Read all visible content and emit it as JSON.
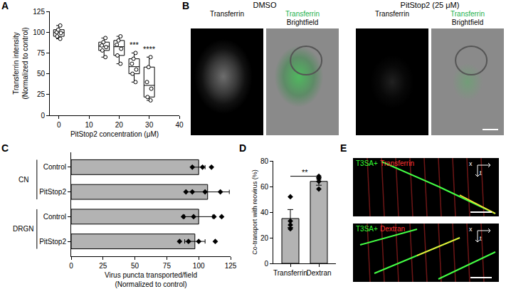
{
  "panel_labels": [
    "A",
    "B",
    "C",
    "D",
    "E"
  ],
  "chart_data": [
    {
      "panel": "A",
      "type": "box",
      "x_label": "PitStop2 concentration (μM)",
      "y_label": "Transferrin intensity\n(Normalized to control)",
      "x": [
        0,
        15,
        20,
        25,
        30
      ],
      "points": [
        [
          100,
          108,
          95,
          92,
          103,
          99
        ],
        [
          93,
          88,
          84,
          78,
          70,
          82
        ],
        [
          95,
          90,
          85,
          80,
          72,
          62
        ],
        [
          75,
          68,
          62,
          55,
          50,
          40
        ],
        [
          70,
          58,
          40,
          32,
          22,
          18
        ]
      ],
      "significance": [
        {
          "x": 25,
          "label": "***"
        },
        {
          "x": 30,
          "label": "****"
        }
      ],
      "xlim": [
        -3,
        40
      ],
      "xticks": [
        0,
        10,
        20,
        30,
        40
      ],
      "ylim": [
        0,
        125
      ],
      "yticks": [
        0,
        25,
        50,
        75,
        100,
        125
      ],
      "grid": false
    },
    {
      "panel": "C",
      "type": "bar",
      "orientation": "horizontal",
      "categories": [
        "Control",
        "PitStop2",
        "Control",
        "PitStop2"
      ],
      "groups": [
        "CN",
        "CN",
        "DRGN",
        "DRGN"
      ],
      "values": [
        100,
        107,
        100,
        97
      ],
      "errors": [
        5,
        17,
        11,
        8
      ],
      "points": [
        [
          95,
          103,
          110
        ],
        [
          90,
          95,
          105,
          117
        ],
        [
          88,
          96,
          112,
          118
        ],
        [
          85,
          92,
          100,
          113
        ]
      ],
      "x_label": "Virus puncta transported/field\n(Normalized to control)",
      "xlim": [
        0,
        125
      ],
      "xticks": [
        0,
        25,
        50,
        75,
        100,
        125
      ],
      "color": "#b3b3b3",
      "marker": "diamond",
      "grid": false
    },
    {
      "panel": "D",
      "type": "bar",
      "categories": [
        "Transferrin",
        "Dextran"
      ],
      "values": [
        35,
        64
      ],
      "errors": [
        7,
        3
      ],
      "points": [
        [
          52,
          33,
          30,
          27
        ],
        [
          58,
          64,
          66,
          68
        ]
      ],
      "y_label": "Co-transport with reovirus (%)",
      "ylim": [
        0,
        80
      ],
      "yticks": [
        0,
        20,
        40,
        60,
        80
      ],
      "significance": "**",
      "color": "#b3b3b3",
      "marker": "diamond",
      "grid": false
    }
  ],
  "images": {
    "B": {
      "groups": [
        {
          "title": "DMSO",
          "panels": [
            [
              {
                "text": "Transferrin",
                "color": "#000000"
              }
            ],
            [
              {
                "text": "Transferrin",
                "color": "#22b14c"
              },
              {
                "text": "Brightfield",
                "color": "#000000"
              }
            ]
          ]
        },
        {
          "title": "PitStop2 (25 μM)",
          "panels": [
            [
              {
                "text": "Transferrin",
                "color": "#000000"
              }
            ],
            [
              {
                "text": "Transferrin",
                "color": "#22b14c"
              },
              {
                "text": "Brightfield",
                "color": "#000000"
              }
            ]
          ]
        }
      ]
    },
    "E": {
      "kymographs": [
        [
          {
            "text": "T3SA+",
            "color": "#33ff33"
          },
          {
            "text": "Transferrin",
            "color": "#ff3333"
          }
        ],
        [
          {
            "text": "T3SA+",
            "color": "#33ff33"
          },
          {
            "text": "Dextran",
            "color": "#ff3333"
          }
        ]
      ],
      "axes": {
        "x": "x",
        "t": "t"
      }
    }
  }
}
